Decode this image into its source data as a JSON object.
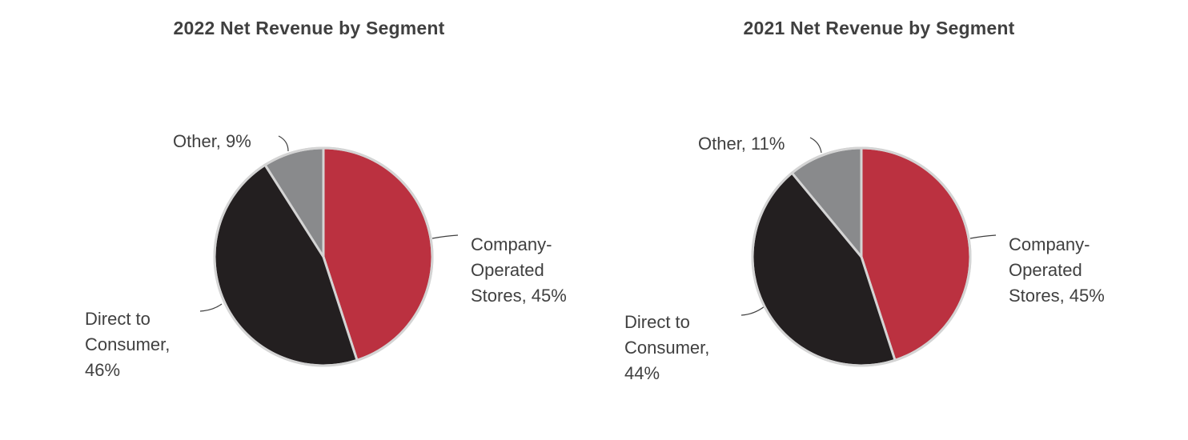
{
  "colors": {
    "Company-Operated Stores": "#bb3140",
    "Direct to Consumer": "#231f20",
    "Other": "#898a8c",
    "border": "#d4d4d4",
    "leader": "#404040"
  },
  "chart_data": [
    {
      "type": "pie",
      "title": "2022 Net Revenue by Segment",
      "slices": [
        {
          "label": "Company-Operated Stores",
          "value": 45,
          "label_lines": [
            "Company-",
            "Operated",
            "Stores, 45%"
          ]
        },
        {
          "label": "Direct to Consumer",
          "value": 46,
          "label_lines": [
            "Direct to",
            "Consumer,",
            "46%"
          ]
        },
        {
          "label": "Other",
          "value": 9,
          "label_lines": [
            "Other, 9%"
          ]
        }
      ]
    },
    {
      "type": "pie",
      "title": "2021 Net Revenue by Segment",
      "slices": [
        {
          "label": "Company-Operated Stores",
          "value": 45,
          "label_lines": [
            "Company-",
            "Operated",
            "Stores, 45%"
          ]
        },
        {
          "label": "Direct to Consumer",
          "value": 44,
          "label_lines": [
            "Direct to",
            "Consumer,",
            "44%"
          ]
        },
        {
          "label": "Other",
          "value": 11,
          "label_lines": [
            "Other, 11%"
          ]
        }
      ]
    }
  ]
}
